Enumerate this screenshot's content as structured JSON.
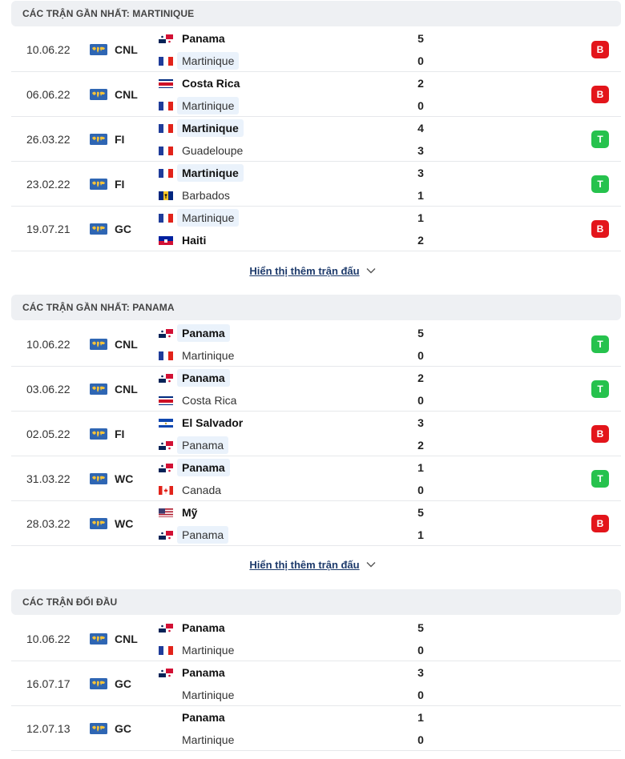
{
  "sections": [
    {
      "title": "CÁC TRẬN GẦN NHẤT: MARTINIQUE",
      "more_label": "Hiển thị thêm trận đấu",
      "matches": [
        {
          "date": "10.06.22",
          "league": "CNL",
          "home": "Panama",
          "home_flag": "panama",
          "home_score": "5",
          "away": "Martinique",
          "away_flag": "france",
          "away_score": "0",
          "winner": "home",
          "hl": "away",
          "result": "B"
        },
        {
          "date": "06.06.22",
          "league": "CNL",
          "home": "Costa Rica",
          "home_flag": "costarica",
          "home_score": "2",
          "away": "Martinique",
          "away_flag": "france",
          "away_score": "0",
          "winner": "home",
          "hl": "away",
          "result": "B"
        },
        {
          "date": "26.03.22",
          "league": "FI",
          "home": "Martinique",
          "home_flag": "france",
          "home_score": "4",
          "away": "Guadeloupe",
          "away_flag": "france",
          "away_score": "3",
          "winner": "home",
          "hl": "home",
          "result": "T"
        },
        {
          "date": "23.02.22",
          "league": "FI",
          "home": "Martinique",
          "home_flag": "france",
          "home_score": "3",
          "away": "Barbados",
          "away_flag": "barbados",
          "away_score": "1",
          "winner": "home",
          "hl": "home",
          "result": "T"
        },
        {
          "date": "19.07.21",
          "league": "GC",
          "home": "Martinique",
          "home_flag": "france",
          "home_score": "1",
          "away": "Haiti",
          "away_flag": "haiti",
          "away_score": "2",
          "winner": "away",
          "hl": "home",
          "result": "B"
        }
      ]
    },
    {
      "title": "CÁC TRẬN GẦN NHẤT: PANAMA",
      "more_label": "Hiển thị thêm trận đấu",
      "matches": [
        {
          "date": "10.06.22",
          "league": "CNL",
          "home": "Panama",
          "home_flag": "panama",
          "home_score": "5",
          "away": "Martinique",
          "away_flag": "france",
          "away_score": "0",
          "winner": "home",
          "hl": "home",
          "result": "T"
        },
        {
          "date": "03.06.22",
          "league": "CNL",
          "home": "Panama",
          "home_flag": "panama",
          "home_score": "2",
          "away": "Costa Rica",
          "away_flag": "costarica",
          "away_score": "0",
          "winner": "home",
          "hl": "home",
          "result": "T"
        },
        {
          "date": "02.05.22",
          "league": "FI",
          "home": "El Salvador",
          "home_flag": "elsalvador",
          "home_score": "3",
          "away": "Panama",
          "away_flag": "panama",
          "away_score": "2",
          "winner": "home",
          "hl": "away",
          "result": "B"
        },
        {
          "date": "31.03.22",
          "league": "WC",
          "home": "Panama",
          "home_flag": "panama",
          "home_score": "1",
          "away": "Canada",
          "away_flag": "canada",
          "away_score": "0",
          "winner": "home",
          "hl": "home",
          "result": "T"
        },
        {
          "date": "28.03.22",
          "league": "WC",
          "home": "Mỹ",
          "home_flag": "usa",
          "home_score": "5",
          "away": "Panama",
          "away_flag": "panama",
          "away_score": "1",
          "winner": "home",
          "hl": "away",
          "result": "B"
        }
      ]
    },
    {
      "title": "CÁC TRẬN ĐỐI ĐẦU",
      "more_label": "",
      "matches": [
        {
          "date": "10.06.22",
          "league": "CNL",
          "home": "Panama",
          "home_flag": "panama",
          "home_score": "5",
          "away": "Martinique",
          "away_flag": "france",
          "away_score": "0",
          "winner": "home",
          "hl": "",
          "result": ""
        },
        {
          "date": "16.07.17",
          "league": "GC",
          "home": "Panama",
          "home_flag": "panama",
          "home_score": "3",
          "away": "Martinique",
          "away_flag": "",
          "away_score": "0",
          "winner": "home",
          "hl": "",
          "result": ""
        },
        {
          "date": "12.07.13",
          "league": "GC",
          "home": "Panama",
          "home_flag": "",
          "home_score": "1",
          "away": "Martinique",
          "away_flag": "",
          "away_score": "0",
          "winner": "home",
          "hl": "",
          "result": ""
        }
      ]
    }
  ],
  "colors": {
    "loss": "#e3151b",
    "win": "#26c24d",
    "link": "#1d3a6b"
  },
  "icons": {
    "league": "world-map-icon",
    "more": "chevron-down-icon"
  }
}
